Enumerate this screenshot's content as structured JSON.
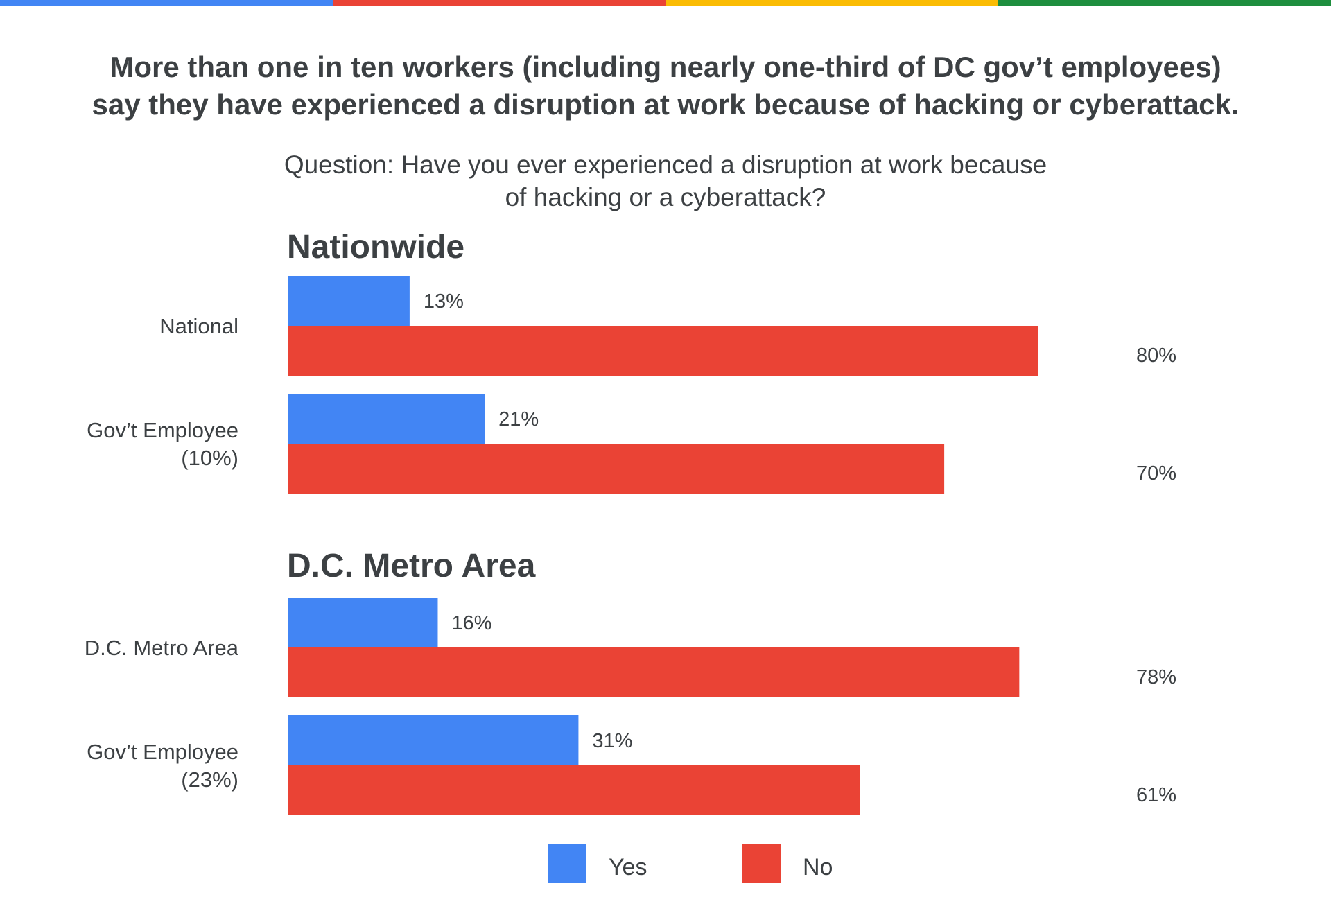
{
  "title": {
    "line1": "More than one in ten workers (including nearly one-third of DC gov’t employees)",
    "line2": "say they have experienced a disruption at work because of hacking or cyberattack."
  },
  "question": {
    "line1": "Question: Have you ever experienced a disruption at work because",
    "line2": "of hacking or a cyberattack?"
  },
  "colors": {
    "yes": "#4285F4",
    "no": "#EA4335",
    "stripe": [
      "#4285F4",
      "#EA4335",
      "#FBBC04",
      "#1E8E3E"
    ],
    "text": "#3C4043"
  },
  "chart_data": {
    "type": "bar",
    "orientation": "horizontal",
    "xlim": [
      0,
      100
    ],
    "grid": false,
    "legend_position": "bottom-center",
    "legend": [
      "Yes",
      "No"
    ],
    "groups": [
      {
        "title": "Nationwide",
        "categories": [
          {
            "label_lines": [
              "National"
            ],
            "yes": 13,
            "no": 80,
            "yes_label": "13%",
            "no_label": "80%"
          },
          {
            "label_lines": [
              "Gov’t Employee",
              "(10%)"
            ],
            "yes": 21,
            "no": 70,
            "yes_label": "21%",
            "no_label": "70%"
          }
        ]
      },
      {
        "title": "D.C. Metro Area",
        "categories": [
          {
            "label_lines": [
              "D.C. Metro Area"
            ],
            "yes": 16,
            "no": 78,
            "yes_label": "16%",
            "no_label": "78%"
          },
          {
            "label_lines": [
              "Gov’t Employee",
              "(23%)"
            ],
            "yes": 31,
            "no": 61,
            "yes_label": "31%",
            "no_label": "61%"
          }
        ]
      }
    ]
  }
}
